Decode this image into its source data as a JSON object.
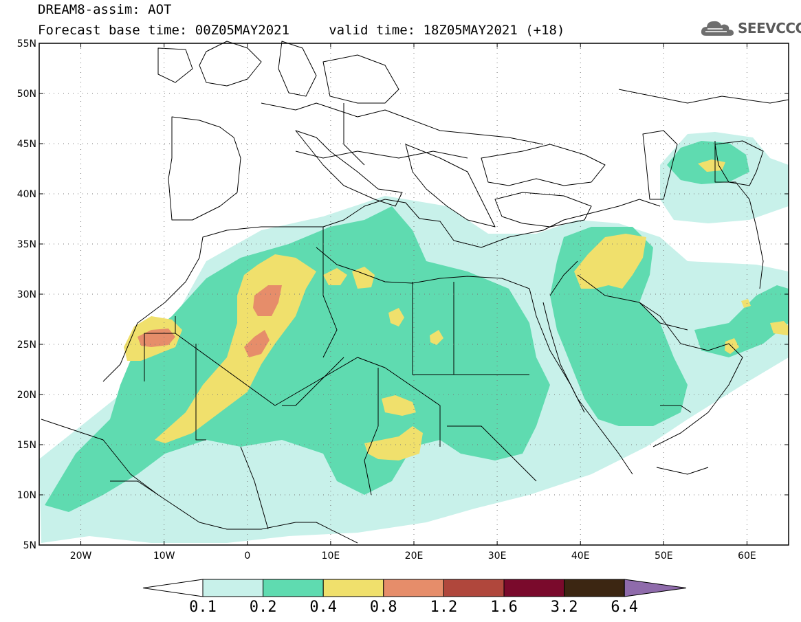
{
  "header": {
    "line1": "DREAM8-assim: AOT",
    "line2": "Forecast base time: 00Z05MAY2021     valid time: 18Z05MAY2021 (+18)",
    "logo_text": "SEEVCCC",
    "logo_icon": "cloud-icon"
  },
  "map": {
    "projection": "lat-lon",
    "lon_range": [
      -25,
      65
    ],
    "lat_range": [
      5,
      55
    ],
    "lat_ticks": [
      {
        "value": 55,
        "label": "55N"
      },
      {
        "value": 50,
        "label": "50N"
      },
      {
        "value": 45,
        "label": "45N"
      },
      {
        "value": 40,
        "label": "40N"
      },
      {
        "value": 35,
        "label": "35N"
      },
      {
        "value": 30,
        "label": "30N"
      },
      {
        "value": 25,
        "label": "25N"
      },
      {
        "value": 20,
        "label": "20N"
      },
      {
        "value": 15,
        "label": "15N"
      },
      {
        "value": 10,
        "label": "10N"
      },
      {
        "value": 5,
        "label": "5N"
      }
    ],
    "lon_ticks": [
      {
        "value": -20,
        "label": "20W"
      },
      {
        "value": -10,
        "label": "10W"
      },
      {
        "value": 0,
        "label": "0"
      },
      {
        "value": 10,
        "label": "10E"
      },
      {
        "value": 20,
        "label": "20E"
      },
      {
        "value": 30,
        "label": "30E"
      },
      {
        "value": 40,
        "label": "40E"
      },
      {
        "value": 50,
        "label": "50E"
      },
      {
        "value": 60,
        "label": "60E"
      }
    ],
    "grid": "dotted",
    "fill_colors": [
      "#c8f1ea",
      "#5fdbb0",
      "#f0e06c",
      "#e68d6a",
      "#b0473c",
      "#7a0a2c",
      "#3c2612",
      "#8f6bab"
    ]
  },
  "colorbar": {
    "levels": [
      "0.1",
      "0.2",
      "0.4",
      "0.8",
      "1.2",
      "1.6",
      "3.2",
      "6.4"
    ],
    "colors": [
      "#ffffff",
      "#c8f1ea",
      "#5fdbb0",
      "#f0e06c",
      "#e68d6a",
      "#b0473c",
      "#7a0a2c",
      "#3c2612",
      "#8f6bab"
    ]
  }
}
